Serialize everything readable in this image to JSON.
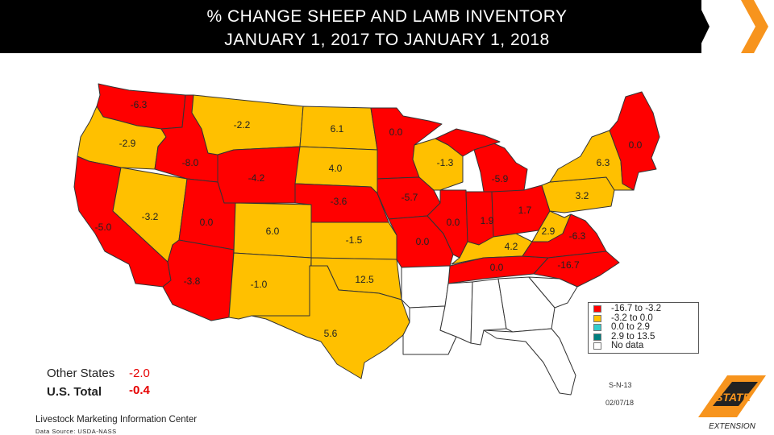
{
  "title": {
    "line1": "% CHANGE  SHEEP AND LAMB  INVENTORY",
    "line2": "JANUARY 1, 2017 TO JANUARY 1, 2018"
  },
  "legend": {
    "items": [
      {
        "label": "-16.7 to -3.2",
        "color": "#ff0000"
      },
      {
        "label": "-3.2 to 0.0",
        "color": "#ffc000"
      },
      {
        "label": "0.0 to 2.9",
        "color": "#33cccc"
      },
      {
        "label": "2.9 to 13.5",
        "color": "#008080"
      },
      {
        "label": "No data",
        "color": "#ffffff"
      }
    ]
  },
  "states": [
    {
      "name": "Washington",
      "value": "-6.3",
      "category": 0
    },
    {
      "name": "Oregon",
      "value": "-2.9",
      "category": 1
    },
    {
      "name": "California",
      "value": "-5.0",
      "category": 0
    },
    {
      "name": "Nevada",
      "value": "-3.2",
      "category": 1
    },
    {
      "name": "Idaho",
      "value": "-8.0",
      "category": 0
    },
    {
      "name": "Montana",
      "value": "-2.2",
      "category": 1
    },
    {
      "name": "Wyoming",
      "value": "-4.2",
      "category": 0
    },
    {
      "name": "Utah",
      "value": "0.0",
      "category": 2
    },
    {
      "name": "Arizona",
      "value": "-3.8",
      "category": 0
    },
    {
      "name": "Colorado",
      "value": "6.0",
      "category": 3
    },
    {
      "name": "New Mexico",
      "value": "-1.0",
      "category": 1
    },
    {
      "name": "North Dakota",
      "value": "6.1",
      "category": 3
    },
    {
      "name": "South Dakota",
      "value": "4.0",
      "category": 3
    },
    {
      "name": "Nebraska",
      "value": "-3.6",
      "category": 0
    },
    {
      "name": "Kansas",
      "value": "-1.5",
      "category": 1
    },
    {
      "name": "Oklahoma",
      "value": "12.5",
      "category": 3
    },
    {
      "name": "Texas",
      "value": "5.6",
      "category": 3
    },
    {
      "name": "Minnesota",
      "value": "0.0",
      "category": 2
    },
    {
      "name": "Iowa",
      "value": "-5.7",
      "category": 0
    },
    {
      "name": "Missouri",
      "value": "0.0",
      "category": 2
    },
    {
      "name": "Wisconsin",
      "value": "-1.3",
      "category": 1
    },
    {
      "name": "Illinois",
      "value": "0.0",
      "category": 2
    },
    {
      "name": "Michigan",
      "value": "-5.9",
      "category": 0
    },
    {
      "name": "Indiana",
      "value": "1.9",
      "category": 2
    },
    {
      "name": "Ohio",
      "value": "1.7",
      "category": 2
    },
    {
      "name": "Kentucky",
      "value": "4.2",
      "category": 3
    },
    {
      "name": "Tennessee",
      "value": "0.0",
      "category": 2
    },
    {
      "name": "West Virginia",
      "value": "2.9",
      "category": 3
    },
    {
      "name": "Virginia",
      "value": "-6.3",
      "category": 0
    },
    {
      "name": "North Carolina",
      "value": "-16.7",
      "category": 0
    },
    {
      "name": "Pennsylvania",
      "value": "3.2",
      "category": 3
    },
    {
      "name": "New York",
      "value": "6.3",
      "category": 3
    },
    {
      "name": "New England",
      "value": "0.0",
      "category": 2
    },
    {
      "name": "Arkansas",
      "value": "",
      "category": 4
    },
    {
      "name": "Louisiana",
      "value": "",
      "category": 4
    },
    {
      "name": "Mississippi",
      "value": "",
      "category": 4
    },
    {
      "name": "Alabama",
      "value": "",
      "category": 4
    },
    {
      "name": "Georgia",
      "value": "",
      "category": 4
    },
    {
      "name": "Florida",
      "value": "",
      "category": 4
    },
    {
      "name": "South Carolina",
      "value": "",
      "category": 4
    }
  ],
  "summary": {
    "other_label": "Other States",
    "other_value": "-2.0",
    "total_label": "U.S. Total",
    "total_value": "-0.4"
  },
  "footer": {
    "code": "S-N-13",
    "date": "02/07/18",
    "org": "Livestock Marketing Information Center",
    "source": "Data Source: USDA-NASS"
  },
  "logo": {
    "text": "STATE",
    "subtext": "EXTENSION",
    "color": "#f7941d"
  }
}
